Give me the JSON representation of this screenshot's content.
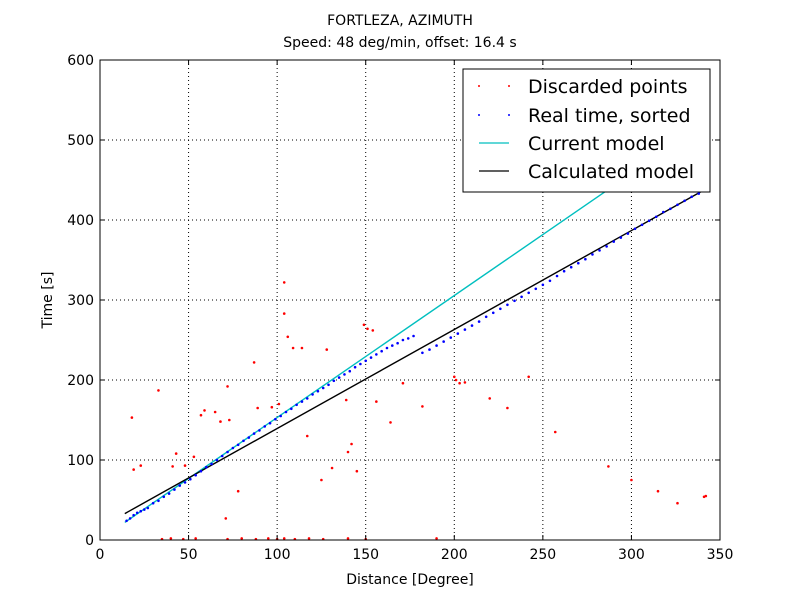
{
  "chart_data": {
    "type": "scatter",
    "title": "FORTLEZA, AZIMUTH",
    "subtitle": "Speed: 48 deg/min, offset: 16.4 s",
    "xlabel": "Distance [Degree]",
    "ylabel": "Time [s]",
    "xlim": [
      0,
      350
    ],
    "ylim": [
      0,
      600
    ],
    "xticks": [
      "0",
      "50",
      "100",
      "150",
      "200",
      "250",
      "300",
      "350"
    ],
    "yticks": [
      "0",
      "100",
      "200",
      "300",
      "400",
      "500",
      "600"
    ],
    "grid": true,
    "legend_position": "top-right",
    "series": [
      {
        "name": "Discarded points",
        "kind": "points",
        "color": "#ff0000",
        "points": [
          [
            18,
            153
          ],
          [
            19,
            88
          ],
          [
            23,
            93
          ],
          [
            33,
            187
          ],
          [
            41,
            92
          ],
          [
            43,
            108
          ],
          [
            48,
            93
          ],
          [
            53,
            104
          ],
          [
            57,
            156
          ],
          [
            59,
            162
          ],
          [
            65,
            160
          ],
          [
            68,
            148
          ],
          [
            71,
            27
          ],
          [
            72,
            192
          ],
          [
            73,
            150
          ],
          [
            78,
            61
          ],
          [
            87,
            222
          ],
          [
            89,
            165
          ],
          [
            97,
            166
          ],
          [
            101,
            170
          ],
          [
            104,
            322
          ],
          [
            104,
            283
          ],
          [
            106,
            254
          ],
          [
            109,
            240
          ],
          [
            114,
            240
          ],
          [
            117,
            130
          ],
          [
            125,
            75
          ],
          [
            128,
            238
          ],
          [
            131,
            90
          ],
          [
            139,
            175
          ],
          [
            140,
            110
          ],
          [
            142,
            120
          ],
          [
            145,
            86
          ],
          [
            149,
            269
          ],
          [
            151,
            264
          ],
          [
            154,
            262
          ],
          [
            156,
            173
          ],
          [
            164,
            147
          ],
          [
            171,
            196
          ],
          [
            182,
            167
          ],
          [
            190,
            2
          ],
          [
            200,
            204
          ],
          [
            201,
            200
          ],
          [
            203,
            196
          ],
          [
            206,
            197
          ],
          [
            220,
            177
          ],
          [
            230,
            165
          ],
          [
            242,
            204
          ],
          [
            257,
            135
          ],
          [
            287,
            92
          ],
          [
            300,
            75
          ],
          [
            315,
            61
          ],
          [
            326,
            46
          ],
          [
            341,
            54
          ],
          [
            342,
            55
          ],
          [
            35,
            1
          ],
          [
            40,
            2
          ],
          [
            47,
            1
          ],
          [
            54,
            2
          ],
          [
            72,
            1
          ],
          [
            80,
            2
          ],
          [
            88,
            1
          ],
          [
            95,
            2
          ],
          [
            100,
            1
          ],
          [
            104,
            2
          ],
          [
            110,
            1
          ],
          [
            118,
            2
          ],
          [
            126,
            1
          ],
          [
            140,
            2
          ],
          [
            150,
            1
          ]
        ]
      },
      {
        "name": "Real time, sorted",
        "kind": "points",
        "color": "#0000ff",
        "points": [
          [
            15,
            24
          ],
          [
            17,
            27
          ],
          [
            19,
            31
          ],
          [
            21,
            34
          ],
          [
            23,
            36
          ],
          [
            25,
            38
          ],
          [
            27,
            40
          ],
          [
            30,
            46
          ],
          [
            33,
            49
          ],
          [
            36,
            54
          ],
          [
            39,
            58
          ],
          [
            42,
            63
          ],
          [
            45,
            68
          ],
          [
            48,
            72
          ],
          [
            51,
            76
          ],
          [
            54,
            81
          ],
          [
            57,
            86
          ],
          [
            60,
            91
          ],
          [
            63,
            95
          ],
          [
            66,
            100
          ],
          [
            69,
            105
          ],
          [
            72,
            110
          ],
          [
            75,
            115
          ],
          [
            78,
            119
          ],
          [
            81,
            124
          ],
          [
            84,
            128
          ],
          [
            87,
            133
          ],
          [
            90,
            137
          ],
          [
            93,
            142
          ],
          [
            96,
            146
          ],
          [
            99,
            151
          ],
          [
            102,
            155
          ],
          [
            105,
            160
          ],
          [
            108,
            164
          ],
          [
            111,
            169
          ],
          [
            114,
            173
          ],
          [
            117,
            177
          ],
          [
            120,
            182
          ],
          [
            123,
            186
          ],
          [
            126,
            190
          ],
          [
            129,
            194
          ],
          [
            132,
            199
          ],
          [
            135,
            203
          ],
          [
            138,
            207
          ],
          [
            141,
            211
          ],
          [
            144,
            216
          ],
          [
            147,
            220
          ],
          [
            150,
            224
          ],
          [
            153,
            228
          ],
          [
            156,
            232
          ],
          [
            159,
            236
          ],
          [
            162,
            240
          ],
          [
            165,
            243
          ],
          [
            168,
            246
          ],
          [
            171,
            250
          ],
          [
            174,
            252
          ],
          [
            177,
            255
          ],
          [
            182,
            234
          ],
          [
            186,
            238
          ],
          [
            190,
            243
          ],
          [
            194,
            248
          ],
          [
            198,
            253
          ],
          [
            202,
            258
          ],
          [
            206,
            263
          ],
          [
            210,
            268
          ],
          [
            214,
            273
          ],
          [
            218,
            279
          ],
          [
            222,
            284
          ],
          [
            226,
            289
          ],
          [
            230,
            294
          ],
          [
            234,
            299
          ],
          [
            238,
            304
          ],
          [
            242,
            309
          ],
          [
            246,
            314
          ],
          [
            250,
            319
          ],
          [
            254,
            324
          ],
          [
            258,
            330
          ],
          [
            262,
            336
          ],
          [
            266,
            341
          ],
          [
            270,
            346
          ],
          [
            274,
            351
          ],
          [
            278,
            357
          ],
          [
            282,
            362
          ],
          [
            286,
            367
          ],
          [
            290,
            373
          ],
          [
            294,
            378
          ],
          [
            298,
            383
          ],
          [
            302,
            389
          ],
          [
            306,
            394
          ],
          [
            310,
            399
          ],
          [
            314,
            404
          ],
          [
            318,
            410
          ],
          [
            322,
            414
          ],
          [
            326,
            419
          ],
          [
            330,
            424
          ],
          [
            334,
            429
          ],
          [
            338,
            433
          ],
          [
            342,
            437
          ]
        ]
      },
      {
        "name": "Current model",
        "kind": "line",
        "color": "#00bfbf",
        "x": [
          14,
          300
        ],
        "y": [
          22,
          458
        ]
      },
      {
        "name": "Calculated model",
        "kind": "line",
        "color": "#000000",
        "x": [
          14,
          343
        ],
        "y": [
          33,
          440
        ]
      }
    ]
  }
}
